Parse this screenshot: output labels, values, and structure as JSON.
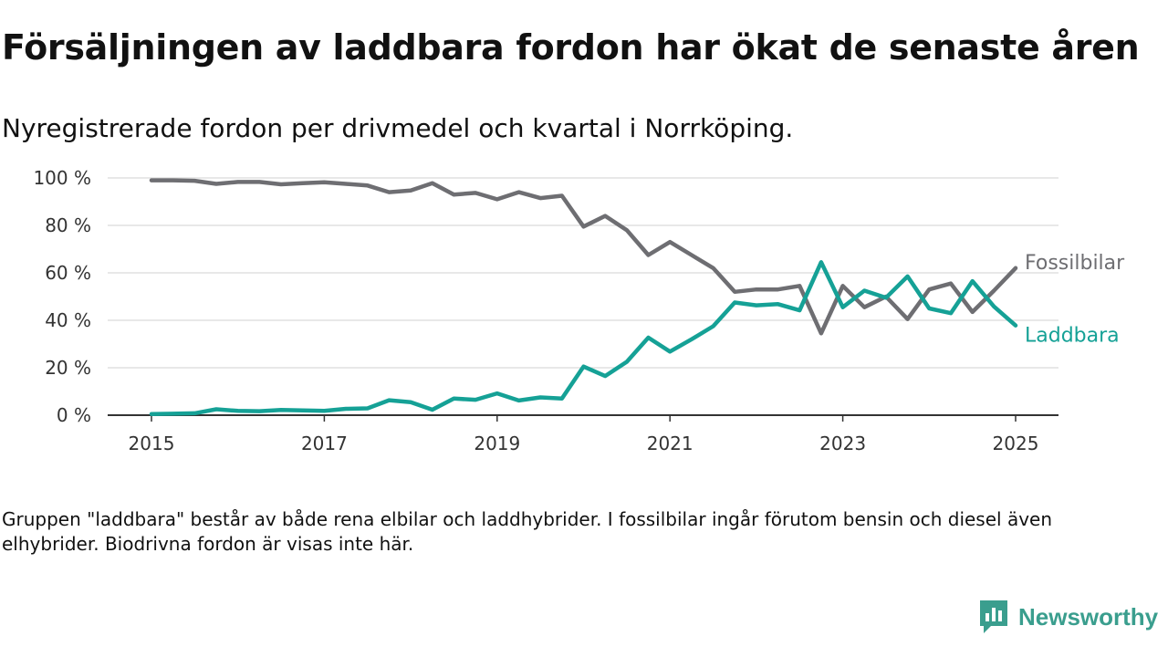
{
  "title": "Försäljningen av laddbara fordon har ökat de senaste åren",
  "subtitle": "Nyregistrerade fordon per drivmedel och kvartal i Norrköping.",
  "note": "Gruppen \"laddbara\" består av både rena elbilar och laddhybrider. I fossilbilar ingår förutom bensin och diesel även elhybrider. Biodrivna fordon är visas inte här.",
  "brand": "Newsworthy",
  "colors": {
    "fossil": "#6e6e72",
    "laddbara": "#15a196",
    "brand": "#3a9e8e"
  },
  "chart_data": {
    "type": "line",
    "x": [
      2015.0,
      2015.25,
      2015.5,
      2015.75,
      2016.0,
      2016.25,
      2016.5,
      2016.75,
      2017.0,
      2017.25,
      2017.5,
      2017.75,
      2018.0,
      2018.25,
      2018.5,
      2018.75,
      2019.0,
      2019.25,
      2019.5,
      2019.75,
      2020.0,
      2020.25,
      2020.5,
      2020.75,
      2021.0,
      2021.25,
      2021.5,
      2021.75,
      2022.0,
      2022.25,
      2022.5,
      2022.75,
      2023.0,
      2023.25,
      2023.5,
      2023.75,
      2024.0,
      2024.25,
      2024.5,
      2024.75,
      2025.0
    ],
    "series": [
      {
        "name": "Fossilbilar",
        "color": "#6e6e72",
        "values": [
          99,
          99,
          98.8,
          97.5,
          98.3,
          98.3,
          97.3,
          97.8,
          98.2,
          97.5,
          96.8,
          94,
          94.7,
          97.8,
          93,
          93.7,
          91,
          94,
          91.5,
          92.5,
          79.5,
          84,
          78,
          67.5,
          73,
          67.5,
          62,
          52,
          53,
          53,
          54.5,
          34.5,
          54.5,
          45.5,
          50,
          40.5,
          53,
          55.5,
          43.5,
          52.5,
          62
        ]
      },
      {
        "name": "Laddbara",
        "color": "#15a196",
        "values": [
          0.5,
          0.6,
          0.8,
          2.5,
          1.8,
          1.7,
          2.2,
          2,
          1.8,
          2.7,
          2.9,
          6.3,
          5.5,
          2.3,
          7,
          6.5,
          9.2,
          6.2,
          7.5,
          7,
          20.5,
          16.5,
          22.5,
          32.7,
          26.8,
          32,
          37.5,
          47.5,
          46.3,
          46.8,
          44.2,
          64.5,
          45.5,
          52.5,
          49.5,
          58.5,
          45,
          43,
          56.5,
          45.8,
          37.8
        ]
      }
    ],
    "xticks": [
      "2015",
      "2017",
      "2019",
      "2021",
      "2023",
      "2025"
    ],
    "yticks": [
      "0 %",
      "20 %",
      "40 %",
      "60 %",
      "80 %",
      "100 %"
    ],
    "xlim": [
      2014.5,
      2025.25
    ],
    "ylim": [
      0,
      100
    ],
    "grid": true,
    "legend": "inline-end-labels"
  }
}
